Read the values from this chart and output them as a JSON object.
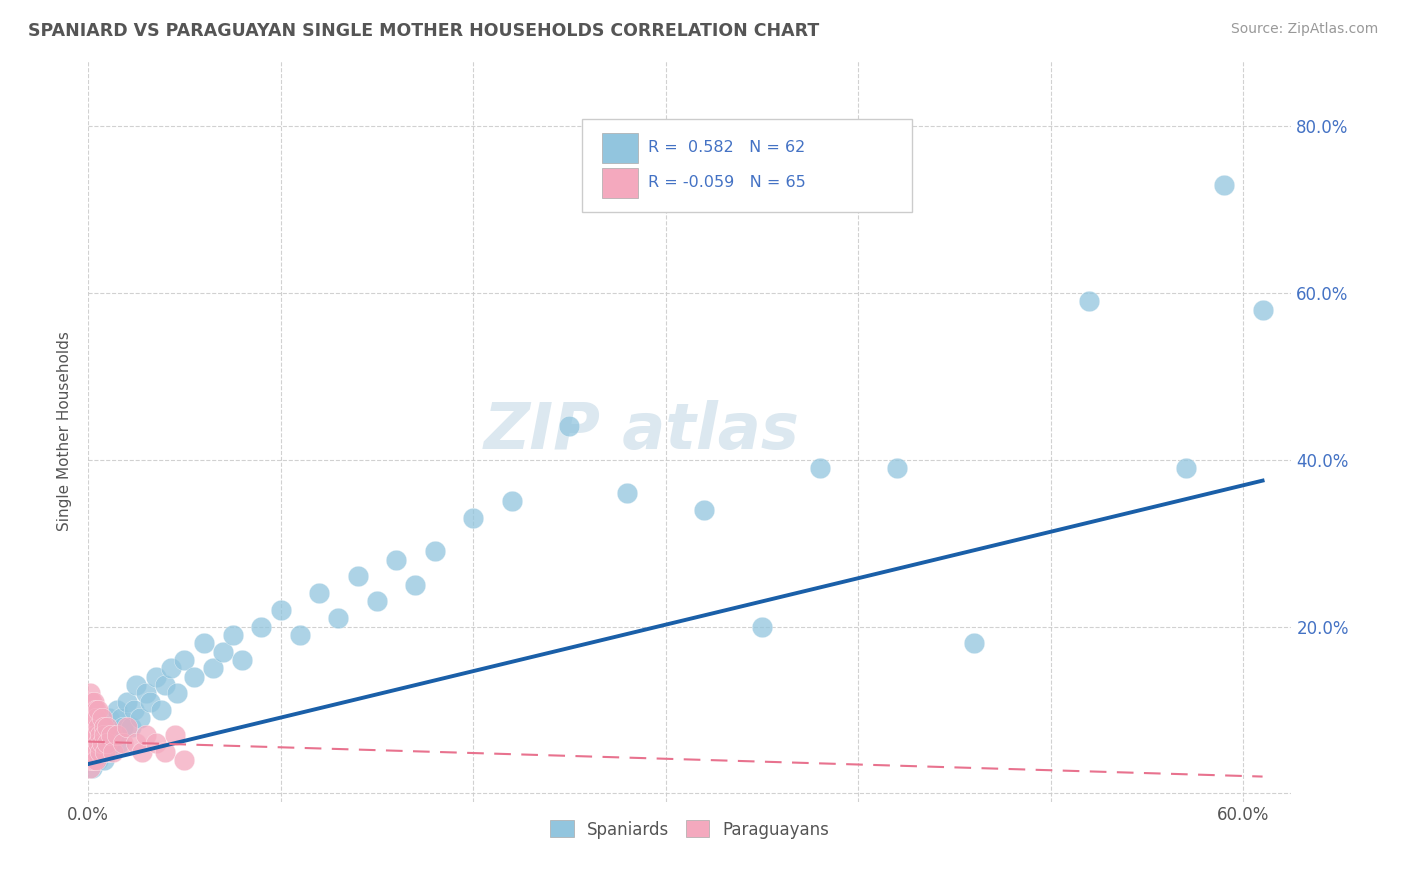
{
  "title": "SPANIARD VS PARAGUAYAN SINGLE MOTHER HOUSEHOLDS CORRELATION CHART",
  "source": "Source: ZipAtlas.com",
  "ylabel": "Single Mother Households",
  "xlim": [
    0.0,
    0.625
  ],
  "ylim": [
    -0.01,
    0.88
  ],
  "xticks": [
    0.0,
    0.1,
    0.2,
    0.3,
    0.4,
    0.5,
    0.6
  ],
  "xtick_labels": [
    "0.0%",
    "",
    "",
    "",
    "",
    "",
    "60.0%"
  ],
  "yticks": [
    0.0,
    0.2,
    0.4,
    0.6,
    0.8
  ],
  "ytick_labels": [
    "",
    "20.0%",
    "40.0%",
    "60.0%",
    "80.0%"
  ],
  "blue_color": "#92c5de",
  "pink_color": "#f4a9be",
  "blue_line_color": "#1a5fa8",
  "pink_line_color": "#e8728e",
  "title_color": "#555555",
  "source_color": "#999999",
  "legend_text_color": "#4472c4",
  "background_color": "#ffffff",
  "grid_color": "#cccccc",
  "watermark_color": "#dce8f0",
  "spaniard_x": [
    0.001,
    0.002,
    0.003,
    0.004,
    0.005,
    0.005,
    0.006,
    0.007,
    0.007,
    0.008,
    0.009,
    0.01,
    0.011,
    0.012,
    0.013,
    0.014,
    0.015,
    0.016,
    0.017,
    0.018,
    0.02,
    0.022,
    0.024,
    0.025,
    0.027,
    0.03,
    0.032,
    0.035,
    0.038,
    0.04,
    0.043,
    0.046,
    0.05,
    0.055,
    0.06,
    0.065,
    0.07,
    0.075,
    0.08,
    0.09,
    0.1,
    0.11,
    0.12,
    0.13,
    0.14,
    0.15,
    0.16,
    0.17,
    0.18,
    0.2,
    0.22,
    0.25,
    0.28,
    0.32,
    0.35,
    0.38,
    0.42,
    0.46,
    0.52,
    0.57,
    0.59,
    0.61
  ],
  "spaniard_y": [
    0.04,
    0.03,
    0.05,
    0.06,
    0.04,
    0.07,
    0.05,
    0.08,
    0.06,
    0.04,
    0.07,
    0.05,
    0.09,
    0.06,
    0.08,
    0.07,
    0.1,
    0.06,
    0.09,
    0.08,
    0.11,
    0.08,
    0.1,
    0.13,
    0.09,
    0.12,
    0.11,
    0.14,
    0.1,
    0.13,
    0.15,
    0.12,
    0.16,
    0.14,
    0.18,
    0.15,
    0.17,
    0.19,
    0.16,
    0.2,
    0.22,
    0.19,
    0.24,
    0.21,
    0.26,
    0.23,
    0.28,
    0.25,
    0.29,
    0.33,
    0.35,
    0.44,
    0.36,
    0.34,
    0.2,
    0.39,
    0.39,
    0.18,
    0.59,
    0.39,
    0.73,
    0.58
  ],
  "paraguayan_x": [
    0.0,
    0.0,
    0.0,
    0.0,
    0.0,
    0.001,
    0.001,
    0.001,
    0.001,
    0.001,
    0.001,
    0.001,
    0.001,
    0.001,
    0.001,
    0.002,
    0.002,
    0.002,
    0.002,
    0.002,
    0.002,
    0.002,
    0.002,
    0.002,
    0.002,
    0.003,
    0.003,
    0.003,
    0.003,
    0.003,
    0.003,
    0.003,
    0.003,
    0.004,
    0.004,
    0.004,
    0.004,
    0.004,
    0.004,
    0.004,
    0.004,
    0.005,
    0.005,
    0.005,
    0.006,
    0.006,
    0.007,
    0.007,
    0.008,
    0.008,
    0.009,
    0.01,
    0.01,
    0.012,
    0.013,
    0.015,
    0.018,
    0.02,
    0.025,
    0.028,
    0.03,
    0.035,
    0.04,
    0.045,
    0.05
  ],
  "paraguayan_y": [
    0.06,
    0.08,
    0.1,
    0.05,
    0.07,
    0.09,
    0.11,
    0.06,
    0.08,
    0.04,
    0.07,
    0.05,
    0.12,
    0.09,
    0.03,
    0.07,
    0.06,
    0.1,
    0.08,
    0.05,
    0.11,
    0.04,
    0.09,
    0.07,
    0.06,
    0.08,
    0.1,
    0.05,
    0.07,
    0.09,
    0.06,
    0.11,
    0.04,
    0.08,
    0.06,
    0.1,
    0.07,
    0.05,
    0.09,
    0.07,
    0.04,
    0.08,
    0.06,
    0.1,
    0.07,
    0.05,
    0.09,
    0.06,
    0.08,
    0.07,
    0.05,
    0.08,
    0.06,
    0.07,
    0.05,
    0.07,
    0.06,
    0.08,
    0.06,
    0.05,
    0.07,
    0.06,
    0.05,
    0.07,
    0.04
  ],
  "blue_line_x": [
    0.0,
    0.61
  ],
  "blue_line_y": [
    0.035,
    0.375
  ],
  "pink_line_x": [
    0.0,
    0.61
  ],
  "pink_line_y": [
    0.062,
    0.02
  ]
}
